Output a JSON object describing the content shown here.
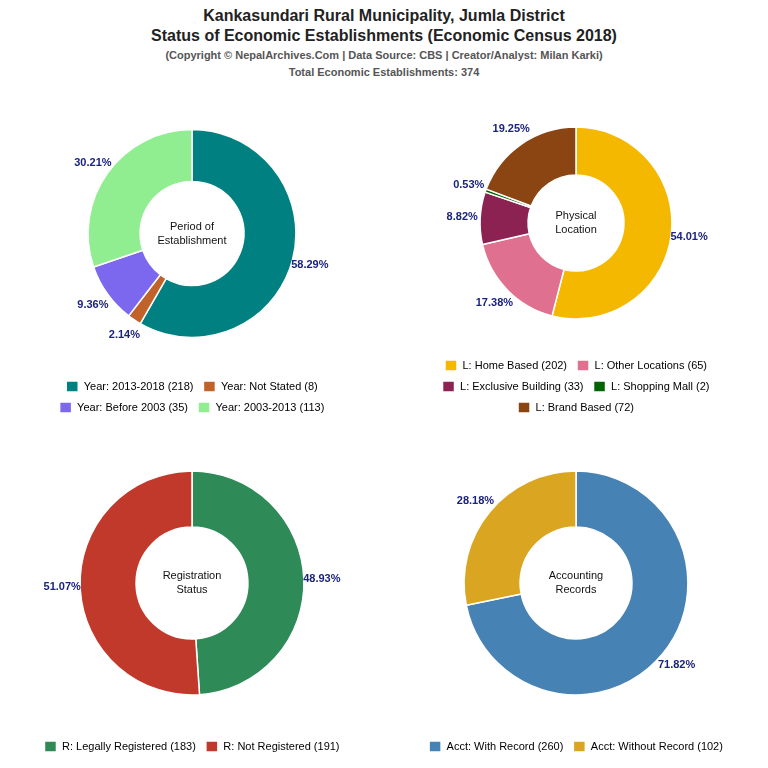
{
  "title": [
    "Kankasundari Rural Municipality, Jumla District",
    "Status of Economic Establishments (Economic Census 2018)"
  ],
  "subtitle": "(Copyright © NepalArchives.Com | Data Source: CBS | Creator/Analyst: Milan Karki)",
  "annotations": [
    "Total Economic Establishments: 374"
  ],
  "chart_data": [
    {
      "type": "doughnut",
      "title": "Period of\nEstablishment",
      "categories": [
        "Year: 2013-2018 (218)",
        "Year: Not Stated (8)",
        "Year: Before 2003 (35)",
        "Year: 2003-2013 (113)"
      ],
      "values": [
        58.29,
        2.14,
        9.36,
        30.21
      ],
      "value_labels": [
        "58.29%",
        "2.14%",
        "9.36%",
        "30.21%"
      ],
      "colors": [
        "#008080",
        "#C0622A",
        "#7B68EE",
        "#90EE90"
      ],
      "data_labels": true,
      "legend": "bottom"
    },
    {
      "type": "doughnut",
      "title": "Physical\nLocation",
      "categories": [
        "L: Home Based (202)",
        "L: Other Locations (65)",
        "L: Exclusive Building (33)",
        "L: Shopping Mall (2)",
        "L: Brand Based (72)"
      ],
      "values": [
        54.01,
        17.38,
        8.82,
        0.53,
        19.25
      ],
      "value_labels": [
        "54.01%",
        "17.38%",
        "8.82%",
        "0.53%",
        "19.25%"
      ],
      "colors": [
        "#F5B800",
        "#E07090",
        "#8B2252",
        "#006400",
        "#8B4513"
      ],
      "data_labels": true,
      "legend": "bottom"
    },
    {
      "type": "doughnut",
      "title": "Registration\nStatus",
      "categories": [
        "R: Legally Registered (183)",
        "R: Not Registered (191)"
      ],
      "values": [
        48.93,
        51.07
      ],
      "value_labels": [
        "48.93%",
        "51.07%"
      ],
      "colors": [
        "#2E8B57",
        "#C0392B"
      ],
      "data_labels": true,
      "legend": "bottom"
    },
    {
      "type": "doughnut",
      "title": "Accounting\nRecords",
      "categories": [
        "Acct: With Record (260)",
        "Acct: Without Record (102)"
      ],
      "values": [
        71.82,
        28.18
      ],
      "value_labels": [
        "71.82%",
        "28.18%"
      ],
      "colors": [
        "#4682B4",
        "#DAA520"
      ],
      "data_labels": true,
      "legend": "bottom"
    }
  ]
}
